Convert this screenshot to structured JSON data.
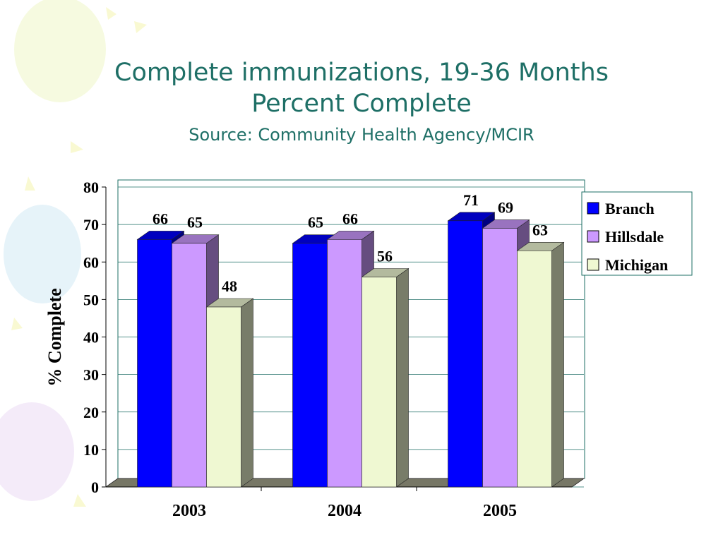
{
  "chart_data": {
    "type": "bar3d",
    "title": "Complete immunizations, 19-36 Months",
    "subtitle": "Percent Complete",
    "source": "Source: Community Health Agency/MCIR",
    "y_label": "% Complete",
    "categories": [
      "2003",
      "2004",
      "2005"
    ],
    "series": [
      {
        "name": "Branch",
        "color": "#0000ff",
        "values": [
          66,
          65,
          71
        ]
      },
      {
        "name": "Hillsdale",
        "color": "#cc99ff",
        "values": [
          65,
          66,
          69
        ]
      },
      {
        "name": "Michigan",
        "color": "#eff8d2",
        "values": [
          48,
          56,
          63
        ]
      }
    ],
    "ylim": [
      0,
      80
    ],
    "yticks": [
      0,
      10,
      20,
      30,
      40,
      50,
      60,
      70,
      80
    ],
    "grid": true,
    "legend": "right"
  }
}
